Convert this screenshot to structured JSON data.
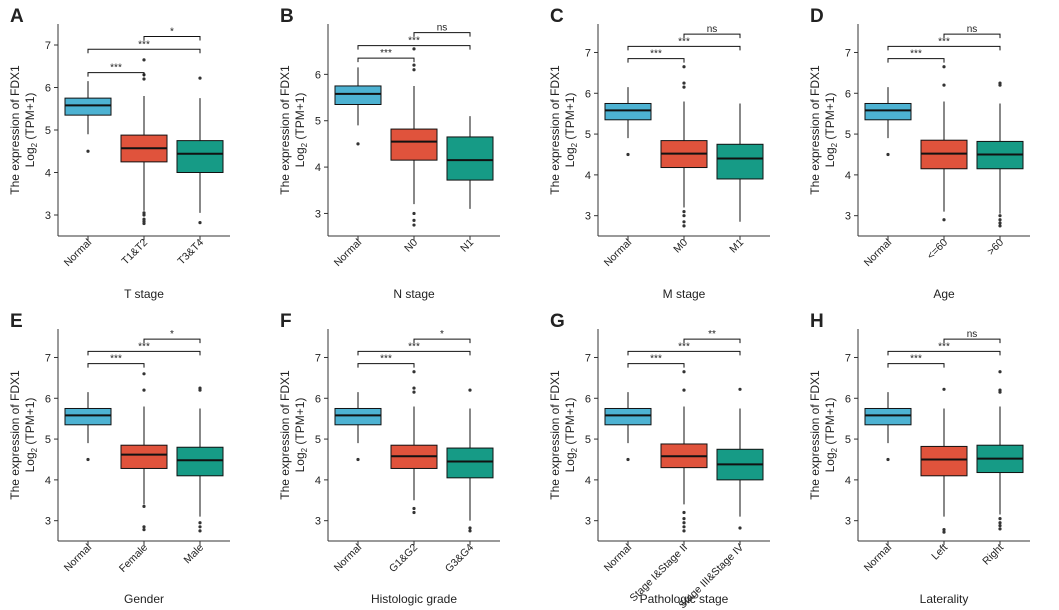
{
  "figure": {
    "colors": {
      "normal": "#4db2d2",
      "group1": "#e0533c",
      "group2": "#169b86",
      "axis": "#333333",
      "outlier": "#333333"
    }
  },
  "chart_data": [
    {
      "type": "boxplot",
      "panel_label": "A",
      "ylabel_main": "The expression of FDX1",
      "ylabel_prefix": "Log",
      "ylabel_sub": "2",
      "ylabel_suffix": " (TPM+1)",
      "xlabel": "T stage",
      "ylim": [
        2.6,
        7.4
      ],
      "yticks": [
        3,
        4,
        5,
        6,
        7
      ],
      "rotate_xticks": true,
      "categories": [
        "Normal",
        "T1&T2",
        "T3&T4"
      ],
      "boxes": [
        {
          "min": 4.9,
          "q1": 5.35,
          "median": 5.58,
          "q3": 5.75,
          "max": 6.15,
          "outliers": [
            4.5
          ]
        },
        {
          "min": 3.1,
          "q1": 4.25,
          "median": 4.57,
          "q3": 4.88,
          "max": 5.8,
          "outliers": [
            2.8,
            2.9,
            3.0,
            3.05,
            2.85,
            6.2,
            6.3,
            6.65
          ]
        },
        {
          "min": 3.05,
          "q1": 4.0,
          "median": 4.44,
          "q3": 4.75,
          "max": 5.75,
          "outliers": [
            2.82,
            6.22
          ]
        }
      ],
      "brackets": [
        {
          "from": 0,
          "to": 1,
          "label": "***",
          "y": 6.35
        },
        {
          "from": 0,
          "to": 2,
          "label": "***",
          "y": 6.9
        },
        {
          "from": 1,
          "to": 2,
          "label": "*",
          "y": 7.2
        }
      ]
    },
    {
      "type": "boxplot",
      "panel_label": "B",
      "ylabel_main": "The expression of FDX1",
      "ylabel_prefix": "Log",
      "ylabel_sub": "2",
      "ylabel_suffix": " (TPM+1)",
      "xlabel": "N stage",
      "ylim": [
        2.6,
        7.0
      ],
      "yticks": [
        3,
        4,
        5,
        6
      ],
      "rotate_xticks": true,
      "categories": [
        "Normal",
        "N0",
        "N1"
      ],
      "boxes": [
        {
          "min": 4.9,
          "q1": 5.35,
          "median": 5.58,
          "q3": 5.75,
          "max": 6.15,
          "outliers": [
            4.5
          ]
        },
        {
          "min": 3.2,
          "q1": 4.15,
          "median": 4.55,
          "q3": 4.82,
          "max": 5.75,
          "outliers": [
            2.75,
            2.85,
            3.0,
            6.1,
            6.2,
            6.55
          ]
        },
        {
          "min": 3.1,
          "q1": 3.72,
          "median": 4.15,
          "q3": 4.65,
          "max": 5.1,
          "outliers": []
        }
      ],
      "brackets": [
        {
          "from": 0,
          "to": 1,
          "label": "***",
          "y": 6.35
        },
        {
          "from": 0,
          "to": 2,
          "label": "***",
          "y": 6.62
        },
        {
          "from": 1,
          "to": 2,
          "label": "ns",
          "y": 6.9
        }
      ]
    },
    {
      "type": "boxplot",
      "panel_label": "C",
      "ylabel_main": "The expression of FDX1",
      "ylabel_prefix": "Log",
      "ylabel_sub": "2",
      "ylabel_suffix": " (TPM+1)",
      "xlabel": "M stage",
      "ylim": [
        2.6,
        7.6
      ],
      "yticks": [
        3,
        4,
        5,
        6,
        7
      ],
      "rotate_xticks": true,
      "categories": [
        "Normal",
        "M0",
        "M1"
      ],
      "boxes": [
        {
          "min": 4.9,
          "q1": 5.35,
          "median": 5.58,
          "q3": 5.75,
          "max": 6.15,
          "outliers": [
            4.5
          ]
        },
        {
          "min": 3.2,
          "q1": 4.18,
          "median": 4.52,
          "q3": 4.84,
          "max": 5.8,
          "outliers": [
            2.75,
            2.85,
            3.0,
            3.1,
            6.15,
            6.25,
            6.65
          ]
        },
        {
          "min": 2.85,
          "q1": 3.9,
          "median": 4.4,
          "q3": 4.75,
          "max": 5.75,
          "outliers": []
        }
      ],
      "brackets": [
        {
          "from": 0,
          "to": 1,
          "label": "***",
          "y": 6.85
        },
        {
          "from": 0,
          "to": 2,
          "label": "***",
          "y": 7.15
        },
        {
          "from": 1,
          "to": 2,
          "label": "ns",
          "y": 7.45
        }
      ]
    },
    {
      "type": "boxplot",
      "panel_label": "D",
      "ylabel_main": "The expression of FDX1",
      "ylabel_prefix": "Log",
      "ylabel_sub": "2",
      "ylabel_suffix": " (TPM+1)",
      "xlabel": "Age",
      "ylim": [
        2.6,
        7.6
      ],
      "yticks": [
        3,
        4,
        5,
        6,
        7
      ],
      "rotate_xticks": true,
      "categories": [
        "Normal",
        "<=60",
        ">60"
      ],
      "boxes": [
        {
          "min": 4.9,
          "q1": 5.35,
          "median": 5.58,
          "q3": 5.75,
          "max": 6.15,
          "outliers": [
            4.5
          ]
        },
        {
          "min": 3.1,
          "q1": 4.15,
          "median": 4.52,
          "q3": 4.85,
          "max": 5.8,
          "outliers": [
            2.9,
            6.2,
            6.65
          ]
        },
        {
          "min": 3.05,
          "q1": 4.15,
          "median": 4.5,
          "q3": 4.82,
          "max": 5.75,
          "outliers": [
            2.75,
            2.82,
            2.9,
            3.0,
            6.2,
            6.25
          ]
        }
      ],
      "brackets": [
        {
          "from": 0,
          "to": 1,
          "label": "***",
          "y": 6.85
        },
        {
          "from": 0,
          "to": 2,
          "label": "***",
          "y": 7.15
        },
        {
          "from": 1,
          "to": 2,
          "label": "ns",
          "y": 7.45
        }
      ]
    },
    {
      "type": "boxplot",
      "panel_label": "E",
      "ylabel_main": "The expression of FDX1",
      "ylabel_prefix": "Log",
      "ylabel_sub": "2",
      "ylabel_suffix": " (TPM+1)",
      "xlabel": "Gender",
      "ylim": [
        2.6,
        7.6
      ],
      "yticks": [
        3,
        4,
        5,
        6,
        7
      ],
      "rotate_xticks": true,
      "categories": [
        "Normal",
        "Female",
        "Male"
      ],
      "boxes": [
        {
          "min": 4.9,
          "q1": 5.35,
          "median": 5.58,
          "q3": 5.75,
          "max": 6.15,
          "outliers": [
            4.5
          ]
        },
        {
          "min": 3.4,
          "q1": 4.28,
          "median": 4.62,
          "q3": 4.85,
          "max": 5.8,
          "outliers": [
            2.78,
            2.85,
            3.35,
            6.2,
            6.6
          ]
        },
        {
          "min": 3.1,
          "q1": 4.1,
          "median": 4.48,
          "q3": 4.8,
          "max": 5.75,
          "outliers": [
            2.75,
            2.85,
            2.95,
            6.2,
            6.25
          ]
        }
      ],
      "brackets": [
        {
          "from": 0,
          "to": 1,
          "label": "***",
          "y": 6.85
        },
        {
          "from": 0,
          "to": 2,
          "label": "***",
          "y": 7.15
        },
        {
          "from": 1,
          "to": 2,
          "label": "*",
          "y": 7.45
        }
      ]
    },
    {
      "type": "boxplot",
      "panel_label": "F",
      "ylabel_main": "The expression of FDX1",
      "ylabel_prefix": "Log",
      "ylabel_sub": "2",
      "ylabel_suffix": " (TPM+1)",
      "xlabel": "Histologic grade",
      "ylim": [
        2.6,
        7.6
      ],
      "yticks": [
        3,
        4,
        5,
        6,
        7
      ],
      "rotate_xticks": true,
      "categories": [
        "Normal",
        "G1&G2",
        "G3&G4"
      ],
      "boxes": [
        {
          "min": 4.9,
          "q1": 5.35,
          "median": 5.58,
          "q3": 5.75,
          "max": 6.15,
          "outliers": [
            4.5
          ]
        },
        {
          "min": 3.5,
          "q1": 4.28,
          "median": 4.58,
          "q3": 4.85,
          "max": 5.8,
          "outliers": [
            3.2,
            3.3,
            6.15,
            6.25,
            6.65
          ]
        },
        {
          "min": 3.0,
          "q1": 4.05,
          "median": 4.45,
          "q3": 4.78,
          "max": 5.75,
          "outliers": [
            2.75,
            2.82,
            6.2
          ]
        }
      ],
      "brackets": [
        {
          "from": 0,
          "to": 1,
          "label": "***",
          "y": 6.85
        },
        {
          "from": 0,
          "to": 2,
          "label": "***",
          "y": 7.15
        },
        {
          "from": 1,
          "to": 2,
          "label": "*",
          "y": 7.45
        }
      ]
    },
    {
      "type": "boxplot",
      "panel_label": "G",
      "ylabel_main": "The expression of FDX1",
      "ylabel_prefix": "Log",
      "ylabel_sub": "2",
      "ylabel_suffix": " (TPM+1)",
      "xlabel": "Pathologic stage",
      "ylim": [
        2.6,
        7.6
      ],
      "yticks": [
        3,
        4,
        5,
        6,
        7
      ],
      "rotate_xticks": true,
      "categories": [
        "Normal",
        "Stage I&Stage II",
        "Stage III&Stage IV"
      ],
      "boxes": [
        {
          "min": 4.9,
          "q1": 5.35,
          "median": 5.58,
          "q3": 5.75,
          "max": 6.15,
          "outliers": [
            4.5
          ]
        },
        {
          "min": 3.4,
          "q1": 4.3,
          "median": 4.58,
          "q3": 4.88,
          "max": 5.8,
          "outliers": [
            2.75,
            2.85,
            2.95,
            3.05,
            3.2,
            6.2,
            6.65
          ]
        },
        {
          "min": 3.1,
          "q1": 4.0,
          "median": 4.38,
          "q3": 4.75,
          "max": 5.75,
          "outliers": [
            2.82,
            6.22
          ]
        }
      ],
      "brackets": [
        {
          "from": 0,
          "to": 1,
          "label": "***",
          "y": 6.85
        },
        {
          "from": 0,
          "to": 2,
          "label": "***",
          "y": 7.15
        },
        {
          "from": 1,
          "to": 2,
          "label": "**",
          "y": 7.45
        }
      ]
    },
    {
      "type": "boxplot",
      "panel_label": "H",
      "ylabel_main": "The expression of FDX1",
      "ylabel_prefix": "Log",
      "ylabel_sub": "2",
      "ylabel_suffix": " (TPM+1)",
      "xlabel": "Laterality",
      "ylim": [
        2.6,
        7.6
      ],
      "yticks": [
        3,
        4,
        5,
        6,
        7
      ],
      "rotate_xticks": true,
      "categories": [
        "Normal",
        "Left",
        "Right"
      ],
      "boxes": [
        {
          "min": 4.9,
          "q1": 5.35,
          "median": 5.58,
          "q3": 5.75,
          "max": 6.15,
          "outliers": [
            4.5
          ]
        },
        {
          "min": 3.1,
          "q1": 4.1,
          "median": 4.5,
          "q3": 4.82,
          "max": 5.75,
          "outliers": [
            2.72,
            2.78,
            6.22
          ]
        },
        {
          "min": 3.15,
          "q1": 4.18,
          "median": 4.52,
          "q3": 4.85,
          "max": 5.8,
          "outliers": [
            2.8,
            2.88,
            2.95,
            3.05,
            6.15,
            6.2,
            6.65
          ]
        }
      ],
      "brackets": [
        {
          "from": 0,
          "to": 1,
          "label": "***",
          "y": 6.85
        },
        {
          "from": 0,
          "to": 2,
          "label": "***",
          "y": 7.15
        },
        {
          "from": 1,
          "to": 2,
          "label": "ns",
          "y": 7.45
        }
      ]
    }
  ]
}
